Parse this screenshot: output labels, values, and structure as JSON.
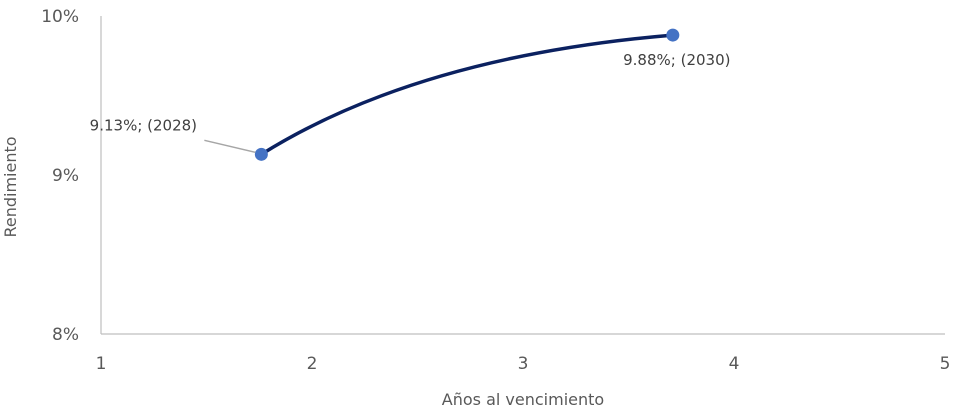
{
  "chart_data": {
    "type": "scatter",
    "title": "",
    "xlabel": "Años al vencimiento",
    "ylabel": "Rendimiento",
    "xlim": [
      1,
      5
    ],
    "ylim": [
      8,
      10
    ],
    "x_ticks": [
      "1",
      "2",
      "3",
      "4",
      "5"
    ],
    "y_ticks": [
      "8%",
      "9%",
      "10%"
    ],
    "grid": false,
    "legend": "none",
    "series": [
      {
        "x": [
          1.76,
          3.71
        ],
        "y": [
          9.13,
          9.88
        ],
        "labels": [
          "9.13%; (2028)",
          "9.88%; (2030)"
        ]
      }
    ],
    "colors": {
      "line": "#0b2160",
      "marker": "#4472c4",
      "axis": "#bfbfbf",
      "leader": "#a6a6a6"
    }
  }
}
